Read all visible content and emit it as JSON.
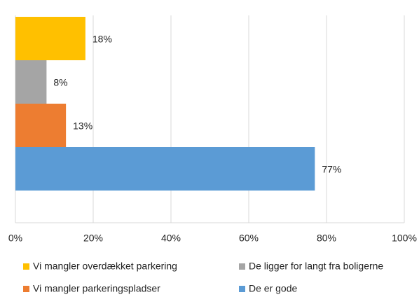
{
  "chart_data": {
    "type": "hbar",
    "series": [
      {
        "name": "Vi mangler overdækket parkering",
        "color": "#ffc000",
        "values": [
          18
        ],
        "value_labels": [
          "18%"
        ]
      },
      {
        "name": "De ligger for langt fra boligerne",
        "color": "#a5a5a5",
        "values": [
          8
        ],
        "value_labels": [
          "8%"
        ]
      },
      {
        "name": "Vi mangler parkeringspladser",
        "color": "#ed7d31",
        "values": [
          13
        ],
        "value_labels": [
          "13%"
        ]
      },
      {
        "name": "De er gode",
        "color": "#5b9bd5",
        "values": [
          77
        ],
        "value_labels": [
          "77%"
        ]
      }
    ],
    "xlim": [
      0,
      100
    ],
    "xticks": [
      {
        "value": 0,
        "label": "0%"
      },
      {
        "value": 20,
        "label": "20%"
      },
      {
        "value": 40,
        "label": "40%"
      },
      {
        "value": 60,
        "label": "60%"
      },
      {
        "value": 80,
        "label": "80%"
      },
      {
        "value": 100,
        "label": "100%"
      }
    ],
    "grid": true,
    "legend": "bottom"
  }
}
